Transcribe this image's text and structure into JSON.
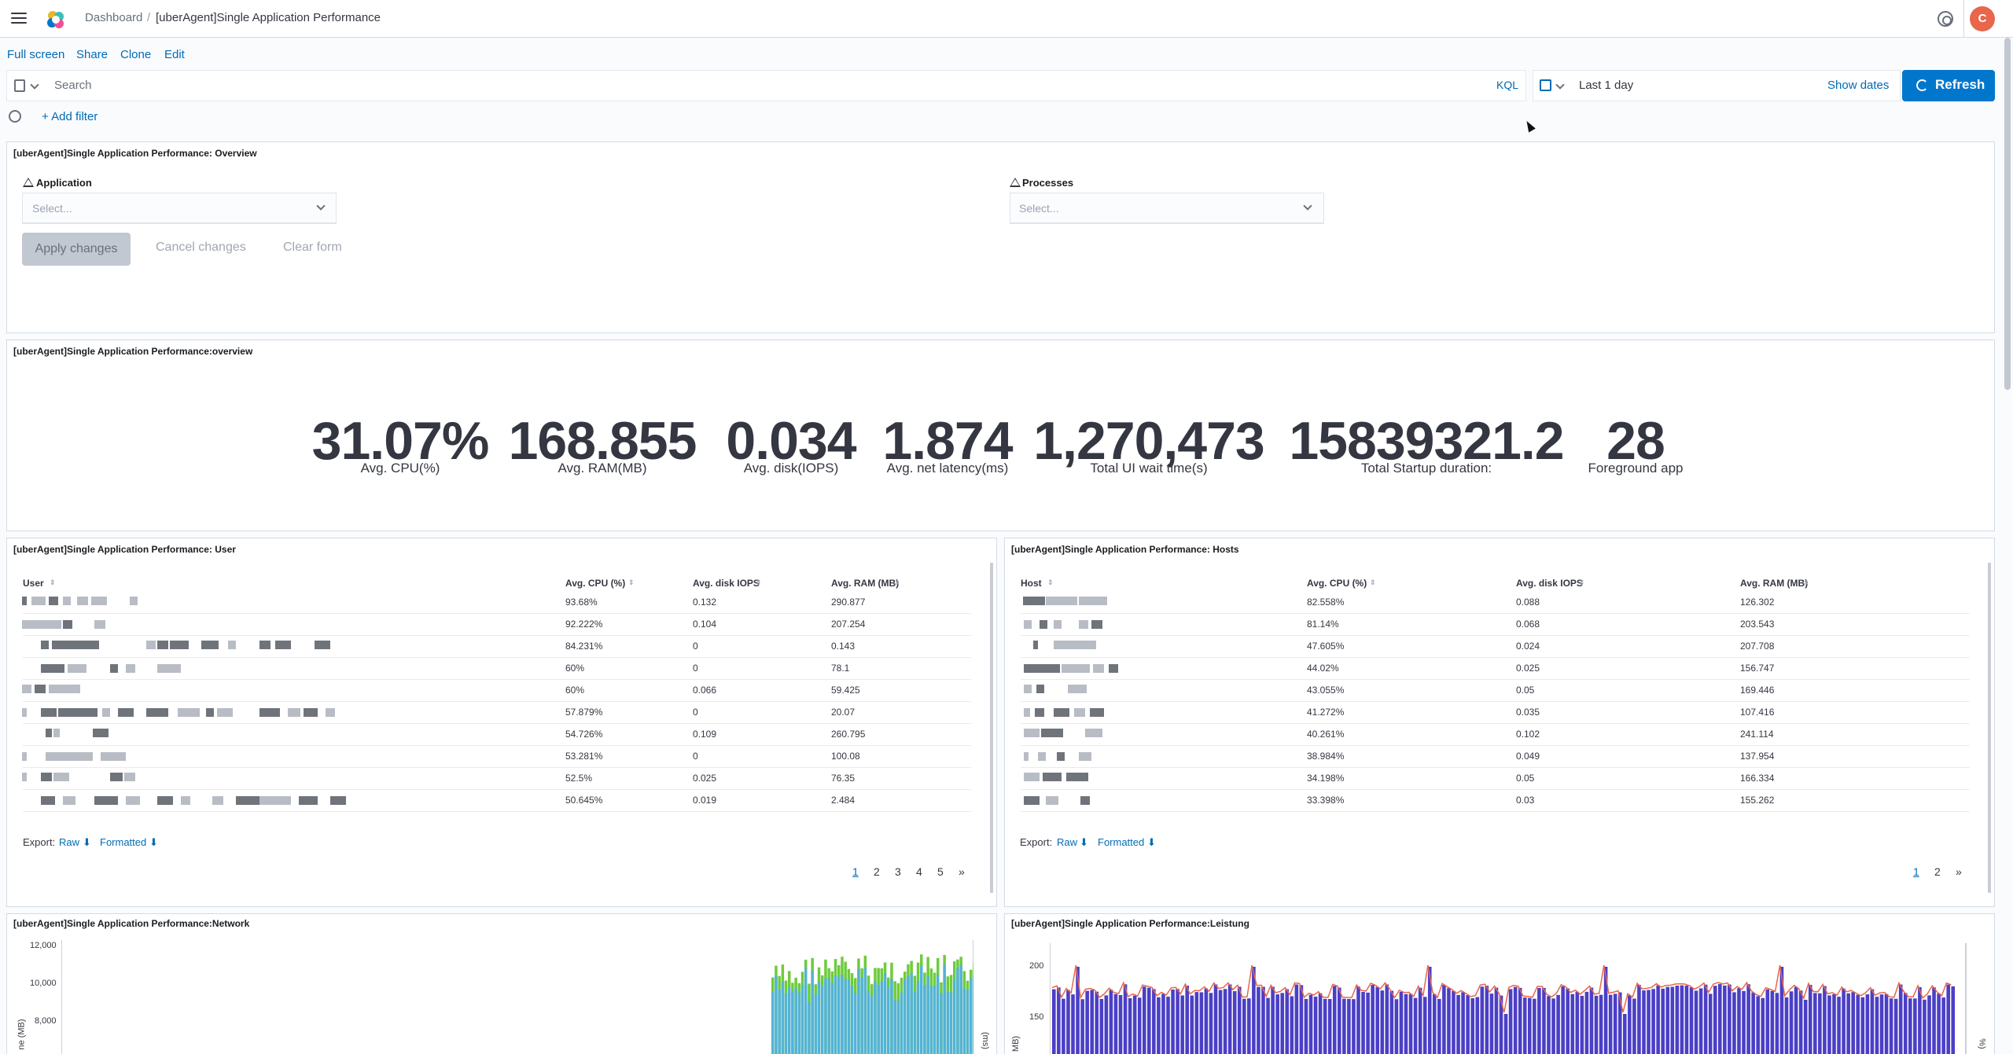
{
  "header": {
    "breadcrumb_root": "Dashboard",
    "breadcrumb_sep": "/",
    "breadcrumb_current": "[uberAgent]Single Application Performance",
    "avatar_initial": "C"
  },
  "actions": {
    "full_screen": "Full screen",
    "share": "Share",
    "clone": "Clone",
    "edit": "Edit"
  },
  "query": {
    "search_placeholder": "Search",
    "kql": "KQL",
    "date_range": "Last 1 day",
    "show_dates": "Show dates",
    "refresh": "Refresh",
    "add_filter": "+ Add filter"
  },
  "controls_panel": {
    "title": "[uberAgent]Single Application Performance: Overview",
    "application_label": "Application",
    "processes_label": "Processes",
    "select_placeholder": "Select...",
    "apply": "Apply changes",
    "cancel": "Cancel changes",
    "clear": "Clear form"
  },
  "metrics_panel": {
    "title": "[uberAgent]Single Application Performance:overview",
    "metrics": [
      {
        "value": "31.07%",
        "label": "Avg. CPU(%)"
      },
      {
        "value": "168.855",
        "label": "Avg. RAM(MB)"
      },
      {
        "value": "0.034",
        "label": "Avg. disk(IOPS)"
      },
      {
        "value": "1.874",
        "label": "Avg. net latency(ms)"
      },
      {
        "value": "1,270,473",
        "label": "Total UI wait time(s)"
      },
      {
        "value": "15839321.2",
        "label": "Total Startup duration:"
      },
      {
        "value": "28",
        "label": "Foreground app"
      }
    ]
  },
  "user_panel": {
    "title": "[uberAgent]Single Application Performance: User",
    "columns": [
      "User",
      "Avg. CPU (%)",
      "Avg. disk IOPS",
      "Avg. RAM (MB)"
    ],
    "rows": [
      [
        "93.68%",
        "0.132",
        "290.877"
      ],
      [
        "92.222%",
        "0.104",
        "207.254"
      ],
      [
        "84.231%",
        "0",
        "0.143"
      ],
      [
        "60%",
        "0",
        "78.1"
      ],
      [
        "60%",
        "0.066",
        "59.425"
      ],
      [
        "57.879%",
        "0",
        "20.07"
      ],
      [
        "54.726%",
        "0.109",
        "260.795"
      ],
      [
        "53.281%",
        "0",
        "100.08"
      ],
      [
        "52.5%",
        "0.025",
        "76.35"
      ],
      [
        "50.645%",
        "0.019",
        "2.484"
      ]
    ],
    "export_label": "Export:",
    "raw": "Raw",
    "formatted": "Formatted",
    "pages": [
      "1",
      "2",
      "3",
      "4",
      "5",
      "»"
    ]
  },
  "hosts_panel": {
    "title": "[uberAgent]Single Application Performance: Hosts",
    "columns": [
      "Host",
      "Avg. CPU (%)",
      "Avg. disk IOPS",
      "Avg. RAM (MB)"
    ],
    "rows": [
      [
        "82.558%",
        "0.088",
        "126.302"
      ],
      [
        "81.14%",
        "0.068",
        "203.543"
      ],
      [
        "47.605%",
        "0.024",
        "207.708"
      ],
      [
        "44.02%",
        "0.025",
        "156.747"
      ],
      [
        "43.055%",
        "0.05",
        "169.446"
      ],
      [
        "41.272%",
        "0.035",
        "107.416"
      ],
      [
        "40.261%",
        "0.102",
        "241.114"
      ],
      [
        "38.984%",
        "0.049",
        "137.954"
      ],
      [
        "34.198%",
        "0.05",
        "166.334"
      ],
      [
        "33.398%",
        "0.03",
        "155.262"
      ]
    ],
    "export_label": "Export:",
    "raw": "Raw",
    "formatted": "Formatted",
    "pages": [
      "1",
      "2",
      "»"
    ]
  },
  "network_panel": {
    "title": "[uberAgent]Single Application Performance:Network",
    "y_ticks": [
      "12,000",
      "10,000",
      "8,000"
    ],
    "y_label_partial": "ne (MB)",
    "y2_label_partial": "(ms)"
  },
  "leistung_panel": {
    "title": "[uberAgent]Single Application Performance:Leistung",
    "y_ticks": [
      "200",
      "150"
    ],
    "y_label_partial": "MB)",
    "y2_label_partial": "%)"
  },
  "colors": {
    "accent": "#0077cc",
    "link": "#006bb4",
    "bar_blue": "#54b3d6",
    "bar_green": "#6dcc3b",
    "bar_indigo": "#4b3fc6",
    "line_orange": "#e7664c"
  }
}
